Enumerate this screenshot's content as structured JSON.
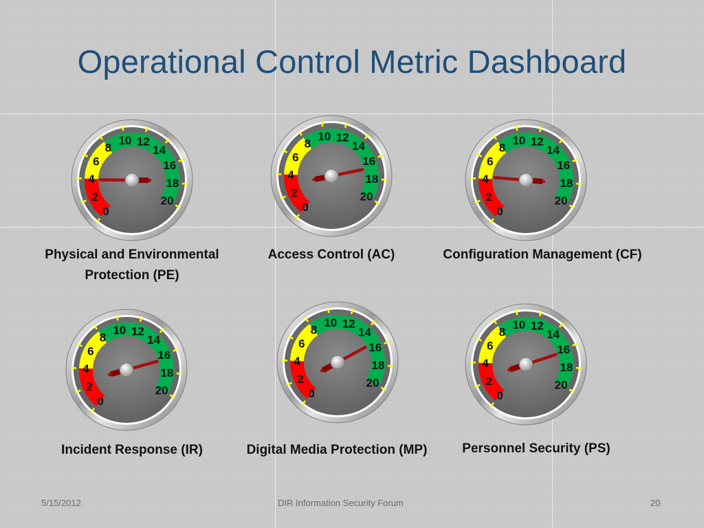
{
  "slide": {
    "title": "Operational Control Metric Dashboard",
    "footer": {
      "date": "5/15/2012",
      "center": "DIR Information Security Forum",
      "page": "20"
    }
  },
  "gauge_scale": {
    "min": 0,
    "max": 20,
    "ticks": [
      "0",
      "2",
      "4",
      "6",
      "8",
      "10",
      "12",
      "14",
      "16",
      "18",
      "20"
    ],
    "zones": [
      {
        "from": 0,
        "to": 4,
        "color": "#ff0000"
      },
      {
        "from": 4,
        "to": 8,
        "color": "#ffff00"
      },
      {
        "from": 8,
        "to": 20,
        "color": "#00b050"
      }
    ]
  },
  "gauges": [
    {
      "label": "Physical and Environmental Protection (PE)",
      "value": 3.9
    },
    {
      "label": "Access Control (AC)",
      "value": 16.8
    },
    {
      "label": "Configuration Management (CF)",
      "value": 4.2
    },
    {
      "label": "Incident Response (IR)",
      "value": 16.5
    },
    {
      "label": "Digital Media Protection (MP)",
      "value": 15.5
    },
    {
      "label": "Personnel Security (PS)",
      "value": 16.3
    }
  ]
}
